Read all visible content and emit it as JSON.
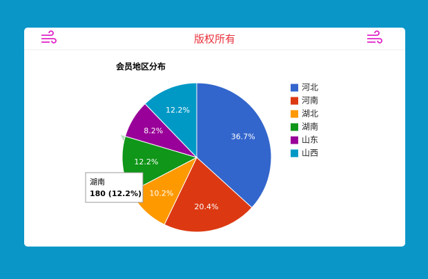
{
  "header": {
    "title": "版权所有"
  },
  "chart_data": {
    "type": "pie",
    "title": "会员地区分布",
    "categories": [
      "河北",
      "河南",
      "湖北",
      "湖南",
      "山东",
      "山西"
    ],
    "values": [
      36.7,
      20.4,
      10.2,
      12.2,
      8.2,
      12.2
    ],
    "value_labels": [
      "36.7%",
      "20.4%",
      "10.2%",
      "12.2%",
      "8.2%",
      "12.2%"
    ],
    "colors": [
      "#3366cc",
      "#dc3912",
      "#ff9900",
      "#109618",
      "#990099",
      "#0099c6"
    ],
    "legend": "right",
    "tooltip": {
      "title": "湖南",
      "text": "180 (12.2%)"
    }
  }
}
